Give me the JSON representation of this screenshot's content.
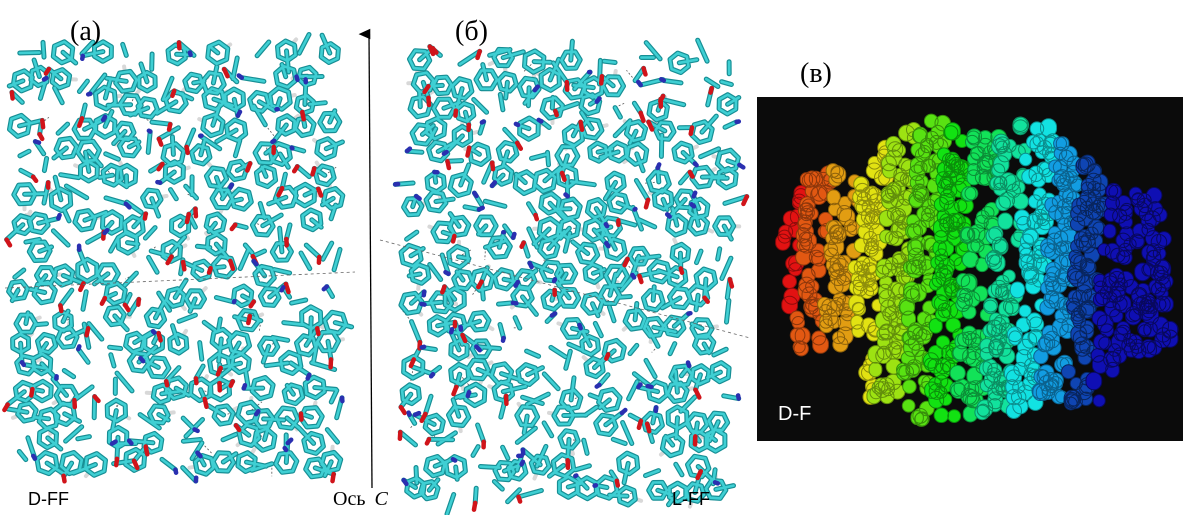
{
  "panels": [
    {
      "letter": "(а)",
      "label": "D-FF"
    },
    {
      "letter": "(б)",
      "label": "L-FF"
    },
    {
      "letter": "(в)",
      "label": "D-F"
    }
  ],
  "axis_label": {
    "text": "Ось",
    "symbol": "C"
  }
}
